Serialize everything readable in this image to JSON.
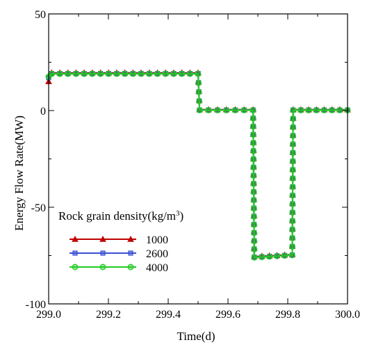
{
  "chart_data": {
    "type": "line",
    "title": "",
    "xlabel": "Time(d)",
    "ylabel": "Energy Flow Rate(MW)",
    "xlim": [
      299.0,
      300.0
    ],
    "ylim": [
      -100,
      50
    ],
    "xticks": [
      "299.0",
      "299.2",
      "299.4",
      "299.6",
      "299.8",
      "300.0"
    ],
    "yticks": [
      "50",
      "0",
      "-50",
      "-100"
    ],
    "grid": false,
    "legend": {
      "placement": "lower-left",
      "title_prefix": "Rock grain density(kg/m",
      "title_sup": "3",
      "title_suffix": ")"
    },
    "series": [
      {
        "name": "1000",
        "color": "#c00000",
        "marker": "triangle",
        "x": [
          299.0,
          299.01,
          299.5,
          299.505,
          299.684,
          299.688,
          299.815,
          299.818,
          300.0
        ],
        "y": [
          15,
          19.5,
          19.5,
          0.5,
          0.5,
          -75.5,
          -74.5,
          0.5,
          0.5
        ]
      },
      {
        "name": "2600",
        "color": "#3a4fd6",
        "marker": "square",
        "x": [
          299.0,
          299.01,
          299.5,
          299.505,
          299.684,
          299.688,
          299.815,
          299.818,
          300.0
        ],
        "y": [
          17,
          19.2,
          19.2,
          0.3,
          0.3,
          -75.8,
          -74.7,
          0.3,
          0.3
        ]
      },
      {
        "name": "4000",
        "color": "#22cc22",
        "marker": "circle",
        "x": [
          299.0,
          299.01,
          299.5,
          299.505,
          299.684,
          299.688,
          299.815,
          299.818,
          300.0
        ],
        "y": [
          17.5,
          19.0,
          19.0,
          0.2,
          0.2,
          -76.0,
          -74.8,
          0.2,
          0.2
        ]
      }
    ]
  }
}
